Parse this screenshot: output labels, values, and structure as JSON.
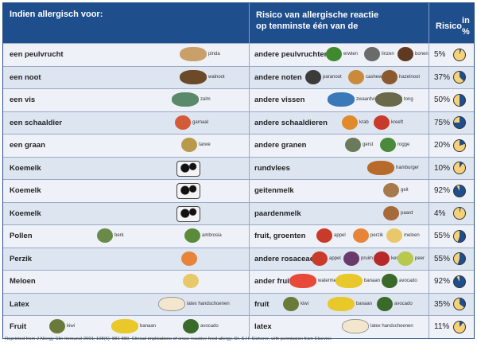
{
  "header": {
    "col1": "Indien allergisch voor:",
    "col2_line1": "Risico van allergische reactie",
    "col2_line2": "op tenminste één van de",
    "col3_line1": "Risico",
    "col3_line2": "in %"
  },
  "colors": {
    "header_bg": "#1f4e8c",
    "pie_fill": "#1f4e8c",
    "pie_empty": "#f5d27a"
  },
  "rows": [
    {
      "allergy": "een peulvrucht",
      "left_items": [
        {
          "icon": "peanut-icon",
          "label": "pinda",
          "color": "#c9a06a"
        }
      ],
      "risk": "andere peulvruchten",
      "right_items": [
        {
          "icon": "pea-icon",
          "label": "erwten",
          "color": "#3f8a2e"
        },
        {
          "icon": "lentil-icon",
          "label": "linzen",
          "color": "#6b6b6b"
        },
        {
          "icon": "bean-icon",
          "label": "bonen",
          "color": "#5e3a20"
        }
      ],
      "percent": "5%",
      "value": 5
    },
    {
      "allergy": "een noot",
      "left_items": [
        {
          "icon": "walnut-icon",
          "label": "walnoot",
          "color": "#6b4a2a"
        }
      ],
      "risk": "andere noten",
      "right_items": [
        {
          "icon": "brazil-nut-icon",
          "label": "paranoot",
          "color": "#3b3b3b"
        },
        {
          "icon": "cashew-icon",
          "label": "cashew",
          "color": "#c98a3c"
        },
        {
          "icon": "hazelnut-icon",
          "label": "hazelnoot",
          "color": "#8a5a2e"
        }
      ],
      "percent": "37%",
      "value": 37
    },
    {
      "allergy": "een vis",
      "left_items": [
        {
          "icon": "salmon-icon",
          "label": "zalm",
          "color": "#5a8a6a"
        }
      ],
      "risk": "andere vissen",
      "right_items": [
        {
          "icon": "swordfish-icon",
          "label": "zwaardvis",
          "color": "#3a78b8"
        },
        {
          "icon": "sole-icon",
          "label": "tong",
          "color": "#6a6a4a"
        }
      ],
      "percent": "50%",
      "value": 50
    },
    {
      "allergy": "een schaaldier",
      "left_items": [
        {
          "icon": "shrimp-icon",
          "label": "garnaal",
          "color": "#d45a3a"
        }
      ],
      "risk": "andere schaaldieren",
      "right_items": [
        {
          "icon": "crab-icon",
          "label": "krab",
          "color": "#e08a2a"
        },
        {
          "icon": "lobster-icon",
          "label": "kreeft",
          "color": "#c83a2a"
        }
      ],
      "percent": "75%",
      "value": 75
    },
    {
      "allergy": "een graan",
      "left_items": [
        {
          "icon": "wheat-icon",
          "label": "tarwe",
          "color": "#b89a4a"
        }
      ],
      "risk": "andere granen",
      "right_items": [
        {
          "icon": "barley-icon",
          "label": "gerst",
          "color": "#6a7a5a"
        },
        {
          "icon": "rye-icon",
          "label": "rogge",
          "color": "#4a8a3a"
        }
      ],
      "percent": "20%",
      "value": 20
    },
    {
      "allergy": "Koemelk",
      "left_items": [
        {
          "icon": "cow-icon",
          "label": "",
          "color": "#111111"
        }
      ],
      "risk": "rundvlees",
      "right_items": [
        {
          "icon": "hamburger-icon",
          "label": "hamburger",
          "color": "#b86a2a"
        }
      ],
      "percent": "10%",
      "value": 10
    },
    {
      "allergy": "Koemelk",
      "left_items": [
        {
          "icon": "cow-icon",
          "label": "",
          "color": "#111111"
        }
      ],
      "risk": "geitenmelk",
      "right_items": [
        {
          "icon": "goat-icon",
          "label": "geit",
          "color": "#a67a4a"
        }
      ],
      "percent": "92%",
      "value": 92
    },
    {
      "allergy": "Koemelk",
      "left_items": [
        {
          "icon": "cow-icon",
          "label": "",
          "color": "#111111"
        }
      ],
      "risk": "paardenmelk",
      "right_items": [
        {
          "icon": "horse-icon",
          "label": "paard",
          "color": "#a66a3a"
        }
      ],
      "percent": "4%",
      "value": 4
    },
    {
      "allergy": "Pollen",
      "left_items": [
        {
          "icon": "birch-icon",
          "label": "berk",
          "color": "#6a8a4a"
        },
        {
          "icon": "ragweed-icon",
          "label": "ambrosia",
          "color": "#5a8a3a"
        }
      ],
      "risk": "fruit, groenten",
      "right_items": [
        {
          "icon": "apple-icon",
          "label": "appel",
          "color": "#c83a2a"
        },
        {
          "icon": "peach-icon",
          "label": "perzik",
          "color": "#e8843a"
        },
        {
          "icon": "melon-icon",
          "label": "meloen",
          "color": "#e8c86a"
        }
      ],
      "percent": "55%",
      "value": 55
    },
    {
      "allergy": "Perzik",
      "left_items": [
        {
          "icon": "peach-icon",
          "label": "",
          "color": "#e8843a"
        }
      ],
      "risk": "andere rosaceae",
      "right_items": [
        {
          "icon": "apple-icon",
          "label": "appel",
          "color": "#c83a2a"
        },
        {
          "icon": "plum-icon",
          "label": "pruim",
          "color": "#6a3a6a"
        },
        {
          "icon": "cherry-icon",
          "label": "kers",
          "color": "#b82a2a"
        },
        {
          "icon": "pear-icon",
          "label": "peer",
          "color": "#b8c84a"
        }
      ],
      "percent": "55%",
      "value": 55
    },
    {
      "allergy": "Meloen",
      "left_items": [
        {
          "icon": "melon-icon",
          "label": "",
          "color": "#e8c86a"
        }
      ],
      "risk": "ander fruit",
      "right_items": [
        {
          "icon": "watermelon-icon",
          "label": "watermeloen",
          "color": "#e84a3a"
        },
        {
          "icon": "banana-icon",
          "label": "banaan",
          "color": "#e8c82a"
        },
        {
          "icon": "avocado-icon",
          "label": "avocado",
          "color": "#3a6a2a"
        }
      ],
      "percent": "92%",
      "value": 92
    },
    {
      "allergy": "Latex",
      "left_items": [
        {
          "icon": "glove-icon",
          "label": "latex handschoenen",
          "color": "#f2e6cc"
        }
      ],
      "risk": "fruit",
      "right_items": [
        {
          "icon": "kiwi-icon",
          "label": "kiwi",
          "color": "#6a7a3a"
        },
        {
          "icon": "banana-icon",
          "label": "banaan",
          "color": "#e8c82a"
        },
        {
          "icon": "avocado-icon",
          "label": "avocado",
          "color": "#3a6a2a"
        }
      ],
      "percent": "35%",
      "value": 35
    },
    {
      "allergy": "Fruit",
      "left_items": [
        {
          "icon": "kiwi-icon",
          "label": "kiwi",
          "color": "#6a7a3a"
        },
        {
          "icon": "banana-icon",
          "label": "banaan",
          "color": "#e8c82a"
        },
        {
          "icon": "avocado-icon",
          "label": "avocado",
          "color": "#3a6a2a"
        }
      ],
      "risk": "latex",
      "right_items": [
        {
          "icon": "glove-icon",
          "label": "latex handschoenen",
          "color": "#f2e6cc"
        }
      ],
      "percent": "11%",
      "value": 11
    }
  ],
  "footer": "Reprinted from J Allergy Clin Immunol 2001; 108(6): 881-889. Clinical implications of cross-reactive  food allergy. Dr. S.H. Sicherer, with permission from Elsevier."
}
